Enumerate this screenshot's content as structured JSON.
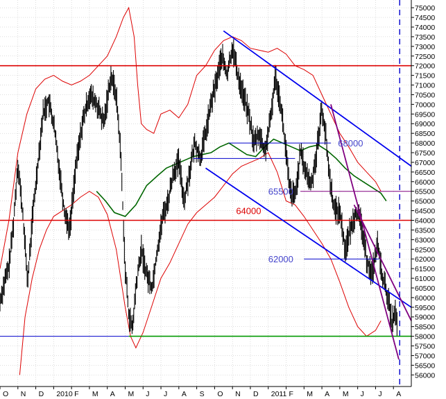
{
  "chart_data": {
    "type": "candlestick",
    "title": "",
    "xlabel": "",
    "ylabel": "",
    "ylim": [
      55400,
      75400
    ],
    "y_ticks": [
      56000,
      56500,
      57000,
      57500,
      58000,
      58500,
      59000,
      59500,
      60000,
      60500,
      61000,
      61500,
      62000,
      62500,
      63000,
      63500,
      64000,
      64500,
      65000,
      65500,
      66000,
      66500,
      67000,
      67500,
      68000,
      68500,
      69000,
      69500,
      70000,
      70500,
      71000,
      71500,
      72000,
      72500,
      73000,
      73500,
      74000,
      74500,
      75000
    ],
    "x_ticks": [
      "O",
      "N",
      "D",
      "2010",
      "F",
      "M",
      "A",
      "M",
      "J",
      "J",
      "A",
      "S",
      "O",
      "N",
      "D",
      "2011",
      "F",
      "M",
      "A",
      "M",
      "J",
      "J",
      "A"
    ],
    "grid": true,
    "x_start": 0,
    "x_end": 23,
    "price_path": [
      [
        0.0,
        59800
      ],
      [
        0.25,
        60800
      ],
      [
        0.5,
        61600
      ],
      [
        0.75,
        63800
      ],
      [
        1.0,
        67000
      ],
      [
        1.3,
        64000
      ],
      [
        1.55,
        60800
      ],
      [
        1.8,
        64000
      ],
      [
        2.1,
        66800
      ],
      [
        2.4,
        69500
      ],
      [
        2.7,
        70200
      ],
      [
        3.0,
        69000
      ],
      [
        3.3,
        66800
      ],
      [
        3.6,
        64500
      ],
      [
        3.9,
        63500
      ],
      [
        4.2,
        66500
      ],
      [
        4.6,
        69000
      ],
      [
        5.0,
        70500
      ],
      [
        5.4,
        70000
      ],
      [
        5.8,
        69000
      ],
      [
        6.2,
        71500
      ],
      [
        6.5,
        70500
      ],
      [
        6.75,
        67500
      ],
      [
        7.0,
        61500
      ],
      [
        7.2,
        59200
      ],
      [
        7.4,
        58300
      ],
      [
        7.6,
        60500
      ],
      [
        7.9,
        62500
      ],
      [
        8.2,
        61200
      ],
      [
        8.5,
        60500
      ],
      [
        8.8,
        62500
      ],
      [
        9.1,
        64200
      ],
      [
        9.4,
        65000
      ],
      [
        9.7,
        66500
      ],
      [
        10.0,
        67000
      ],
      [
        10.3,
        65000
      ],
      [
        10.6,
        66500
      ],
      [
        10.9,
        68000
      ],
      [
        11.2,
        67200
      ],
      [
        11.5,
        68500
      ],
      [
        11.8,
        70000
      ],
      [
        12.1,
        71200
      ],
      [
        12.4,
        72500
      ],
      [
        12.7,
        71500
      ],
      [
        13.0,
        73000
      ],
      [
        13.3,
        71500
      ],
      [
        13.6,
        70500
      ],
      [
        13.9,
        69500
      ],
      [
        14.2,
        68000
      ],
      [
        14.5,
        68500
      ],
      [
        14.8,
        67500
      ],
      [
        15.1,
        69000
      ],
      [
        15.4,
        71500
      ],
      [
        15.7,
        70000
      ],
      [
        16.0,
        67500
      ],
      [
        16.2,
        65500
      ],
      [
        16.5,
        65200
      ],
      [
        16.8,
        67500
      ],
      [
        17.1,
        66500
      ],
      [
        17.4,
        65800
      ],
      [
        17.7,
        67500
      ],
      [
        18.0,
        69800
      ],
      [
        18.2,
        68500
      ],
      [
        18.4,
        66500
      ],
      [
        18.7,
        64500
      ],
      [
        19.0,
        64500
      ],
      [
        19.3,
        62500
      ],
      [
        19.6,
        63500
      ],
      [
        19.9,
        64500
      ],
      [
        20.2,
        63800
      ],
      [
        20.5,
        62000
      ],
      [
        20.8,
        61200
      ],
      [
        21.1,
        62800
      ],
      [
        21.4,
        61000
      ],
      [
        21.7,
        60000
      ],
      [
        21.9,
        58700
      ],
      [
        22.1,
        59200
      ],
      [
        22.2,
        58600
      ]
    ],
    "moving_average": [
      [
        5.4,
        65500
      ],
      [
        5.9,
        65000
      ],
      [
        6.4,
        64400
      ],
      [
        7.0,
        64200
      ],
      [
        7.6,
        64800
      ],
      [
        8.2,
        65800
      ],
      [
        8.8,
        66300
      ],
      [
        9.3,
        66700
      ],
      [
        9.8,
        66900
      ],
      [
        10.3,
        67100
      ],
      [
        10.8,
        67300
      ],
      [
        11.3,
        67400
      ],
      [
        11.8,
        67500
      ],
      [
        12.3,
        67800
      ],
      [
        12.8,
        68000
      ],
      [
        13.3,
        67700
      ],
      [
        13.8,
        67400
      ],
      [
        14.3,
        67300
      ],
      [
        14.8,
        67800
      ],
      [
        15.3,
        68200
      ],
      [
        15.8,
        68000
      ],
      [
        16.3,
        67800
      ],
      [
        16.8,
        67600
      ],
      [
        17.3,
        67800
      ],
      [
        17.8,
        67900
      ],
      [
        18.3,
        67600
      ],
      [
        18.8,
        67200
      ],
      [
        19.3,
        66700
      ],
      [
        19.8,
        66300
      ],
      [
        20.3,
        66000
      ],
      [
        20.8,
        65700
      ],
      [
        21.3,
        65400
      ],
      [
        21.6,
        65000
      ]
    ],
    "bollinger_upper": [
      [
        0.0,
        61500
      ],
      [
        0.5,
        64000
      ],
      [
        1.0,
        67500
      ],
      [
        1.5,
        69500
      ],
      [
        2.0,
        70800
      ],
      [
        2.5,
        71300
      ],
      [
        3.0,
        71500
      ],
      [
        3.5,
        71200
      ],
      [
        4.0,
        71000
      ],
      [
        4.5,
        71200
      ],
      [
        5.0,
        71500
      ],
      [
        5.5,
        72000
      ],
      [
        6.0,
        72500
      ],
      [
        6.5,
        73500
      ],
      [
        6.9,
        74500
      ],
      [
        7.2,
        75000
      ],
      [
        7.5,
        73500
      ],
      [
        7.7,
        71000
      ],
      [
        7.9,
        69000
      ],
      [
        8.2,
        68700
      ],
      [
        8.6,
        68500
      ],
      [
        9.0,
        69500
      ],
      [
        9.5,
        69700
      ],
      [
        10.0,
        69300
      ],
      [
        10.5,
        70000
      ],
      [
        11.0,
        71500
      ],
      [
        11.5,
        72000
      ],
      [
        12.0,
        72800
      ],
      [
        12.5,
        73300
      ],
      [
        13.0,
        73500
      ],
      [
        13.5,
        73300
      ],
      [
        14.0,
        72900
      ],
      [
        14.5,
        72800
      ],
      [
        15.0,
        72700
      ],
      [
        15.5,
        72900
      ],
      [
        16.0,
        72600
      ],
      [
        16.5,
        72000
      ],
      [
        17.0,
        71800
      ],
      [
        17.5,
        71500
      ],
      [
        18.0,
        70500
      ],
      [
        18.5,
        69500
      ],
      [
        19.0,
        68500
      ],
      [
        19.5,
        67800
      ],
      [
        20.0,
        67000
      ],
      [
        20.5,
        66500
      ],
      [
        21.0,
        66000
      ],
      [
        21.3,
        65500
      ]
    ],
    "bollinger_lower": [
      [
        1.1,
        56000
      ],
      [
        1.4,
        59000
      ],
      [
        1.8,
        61000
      ],
      [
        2.2,
        62500
      ],
      [
        2.6,
        63500
      ],
      [
        3.0,
        64200
      ],
      [
        3.5,
        64500
      ],
      [
        4.0,
        64800
      ],
      [
        4.5,
        65200
      ],
      [
        5.0,
        65500
      ],
      [
        5.5,
        65200
      ],
      [
        6.0,
        64300
      ],
      [
        6.5,
        62500
      ],
      [
        7.0,
        59500
      ],
      [
        7.3,
        58000
      ],
      [
        7.6,
        57400
      ],
      [
        8.0,
        58200
      ],
      [
        8.5,
        59600
      ],
      [
        9.0,
        61000
      ],
      [
        9.5,
        61800
      ],
      [
        10.0,
        62800
      ],
      [
        10.5,
        63800
      ],
      [
        11.0,
        64400
      ],
      [
        11.5,
        64800
      ],
      [
        12.0,
        65200
      ],
      [
        12.5,
        65800
      ],
      [
        13.0,
        66400
      ],
      [
        13.5,
        66800
      ],
      [
        14.0,
        67000
      ],
      [
        14.5,
        67200
      ],
      [
        15.0,
        67500
      ],
      [
        15.5,
        66500
      ],
      [
        16.0,
        65000
      ],
      [
        16.5,
        64800
      ],
      [
        17.0,
        64200
      ],
      [
        17.5,
        63500
      ],
      [
        18.0,
        62800
      ],
      [
        18.5,
        62000
      ],
      [
        19.0,
        60800
      ],
      [
        19.5,
        59500
      ],
      [
        20.0,
        58500
      ],
      [
        20.5,
        58000
      ],
      [
        21.0,
        58300
      ],
      [
        21.3,
        58800
      ]
    ],
    "horizontal_lines": [
      {
        "value": 72000,
        "color": "#dd0000",
        "x_from": 0,
        "x_to": 23
      },
      {
        "value": 64000,
        "color": "#dd0000",
        "x_from": 0,
        "x_to": 23
      },
      {
        "value": 58000,
        "color": "#0000cc",
        "x_from": 0,
        "x_to": 7.2
      },
      {
        "value": 58000,
        "color": "#009900",
        "x_from": 7.2,
        "x_to": 23
      },
      {
        "value": 65500,
        "color": "#800080",
        "x_from": 16.8,
        "x_to": 23
      },
      {
        "value": 68000,
        "color": "#0000cc",
        "x_from": 12.8,
        "x_to": 18.5
      },
      {
        "value": 67200,
        "color": "#0000cc",
        "x_from": 10.8,
        "x_to": 16.5
      },
      {
        "value": 62000,
        "color": "#0000cc",
        "x_from": 17.0,
        "x_to": 21.2
      }
    ],
    "trend_lines": [
      {
        "from": [
          12.5,
          73800
        ],
        "to": [
          23.0,
          66800
        ],
        "color": "#0000ee"
      },
      {
        "from": [
          11.5,
          66700
        ],
        "to": [
          23.0,
          59500
        ],
        "color": "#0000ee"
      },
      {
        "from": [
          18.5,
          70000
        ],
        "to": [
          22.3,
          56800
        ],
        "color": "#800080"
      },
      {
        "from": [
          19.8,
          64800
        ],
        "to": [
          23.0,
          58800
        ],
        "color": "#800080"
      }
    ],
    "vertical_marker": {
      "x": 22.35,
      "color": "#0000cc"
    },
    "annotations": [
      {
        "text": "68000",
        "x": 18.9,
        "y": 68000,
        "color": "#4444cc"
      },
      {
        "text": "65500",
        "x": 15.0,
        "y": 65500,
        "color": "#4444cc"
      },
      {
        "text": "64000",
        "x": 13.2,
        "y": 64500,
        "color": "#dd0000"
      },
      {
        "text": "62000",
        "x": 15.0,
        "y": 62000,
        "color": "#4444cc"
      }
    ]
  },
  "colors": {
    "price": "#000000",
    "bollinger": "#dd0000",
    "moving_average": "#006600",
    "grid": "#bbbbbb"
  }
}
